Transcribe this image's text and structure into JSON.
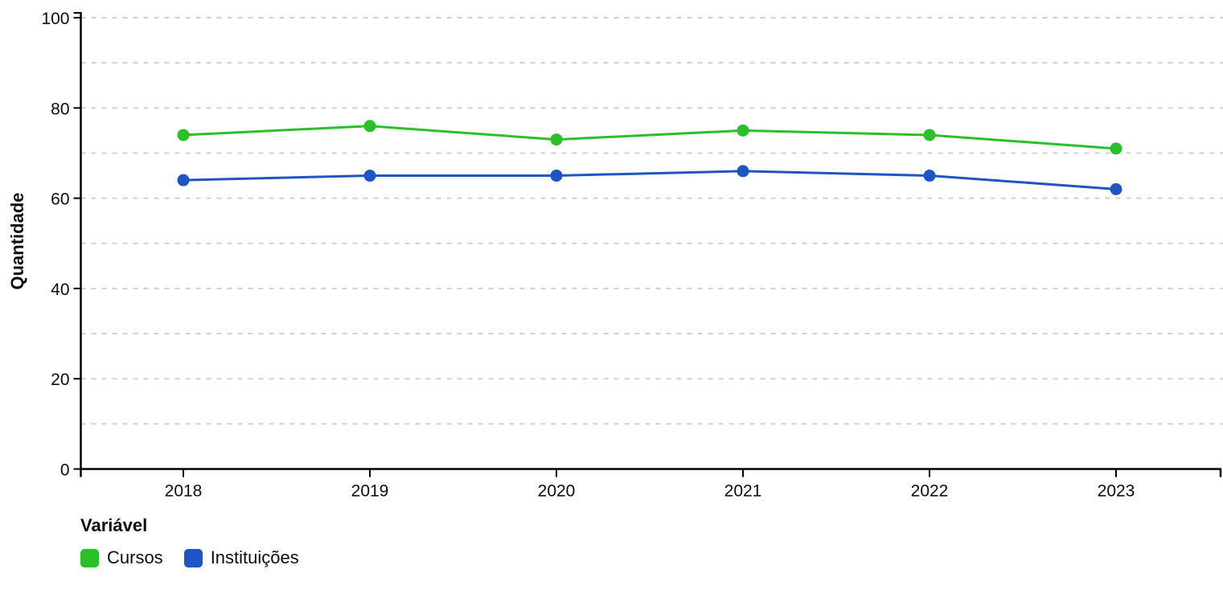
{
  "chart_data": {
    "type": "line",
    "title": "",
    "xlabel": "",
    "ylabel": "Quantidade",
    "categories": [
      "2018",
      "2019",
      "2020",
      "2021",
      "2022",
      "2023"
    ],
    "series": [
      {
        "name": "Cursos",
        "color": "#2bbf2a",
        "values": [
          74,
          76,
          73,
          75,
          74,
          71
        ]
      },
      {
        "name": "Instituições",
        "color": "#1f55c2",
        "values": [
          64,
          65,
          65,
          66,
          65,
          62
        ]
      }
    ],
    "ylim": [
      0,
      100
    ],
    "yticks": [
      0,
      20,
      40,
      60,
      80,
      100
    ],
    "grid_step": 10,
    "grid": true,
    "grid_color": "#d0d0d0",
    "axis_color": "#000000",
    "legend_title": "Variável",
    "legend_position": "bottom-left"
  }
}
